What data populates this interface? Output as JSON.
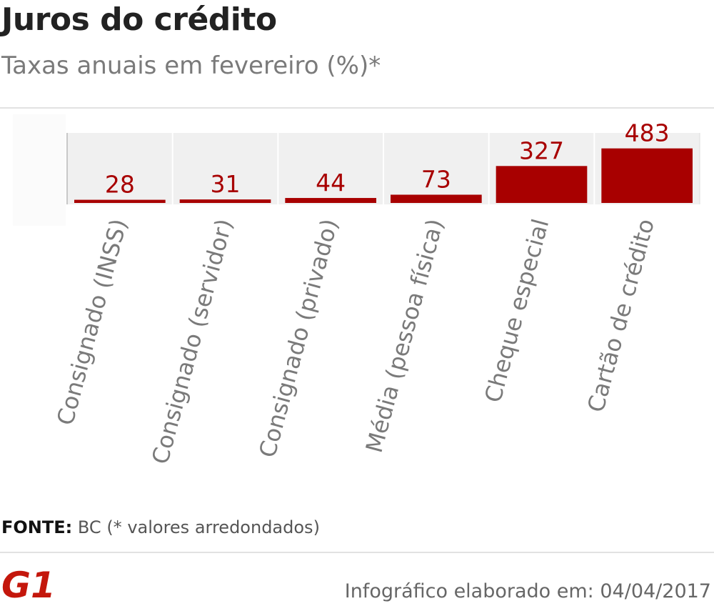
{
  "header": {
    "title": "Juros do crédito",
    "subtitle": "Taxas anuais em fevereiro (%)*"
  },
  "chart_data": {
    "type": "bar",
    "categories": [
      "Consignado (INSS)",
      "Consignado (servidor)",
      "Consignado (privado)",
      "Média (pessoa física)",
      "Cheque especial",
      "Cartão de crédito"
    ],
    "values": [
      28,
      31,
      44,
      73,
      327,
      483
    ],
    "data_labels": [
      "28",
      "31",
      "44",
      "73",
      "327",
      "483"
    ],
    "ylim": [
      0,
      620
    ],
    "grid": false,
    "legend": "none",
    "bar_color": "#a80000",
    "label_color": "#a80000",
    "category_label_color": "#7a7a7a"
  },
  "footer": {
    "source_label": "FONTE:",
    "source_text": "BC (* valores arredondados)",
    "logo_text": "G1",
    "credit": "Infográfico elaborado em: 04/04/2017"
  },
  "colors": {
    "title": "#222222",
    "subtitle": "#7a7a7a",
    "logo": "#c4170c",
    "plot_background": "#f0f0f0"
  }
}
